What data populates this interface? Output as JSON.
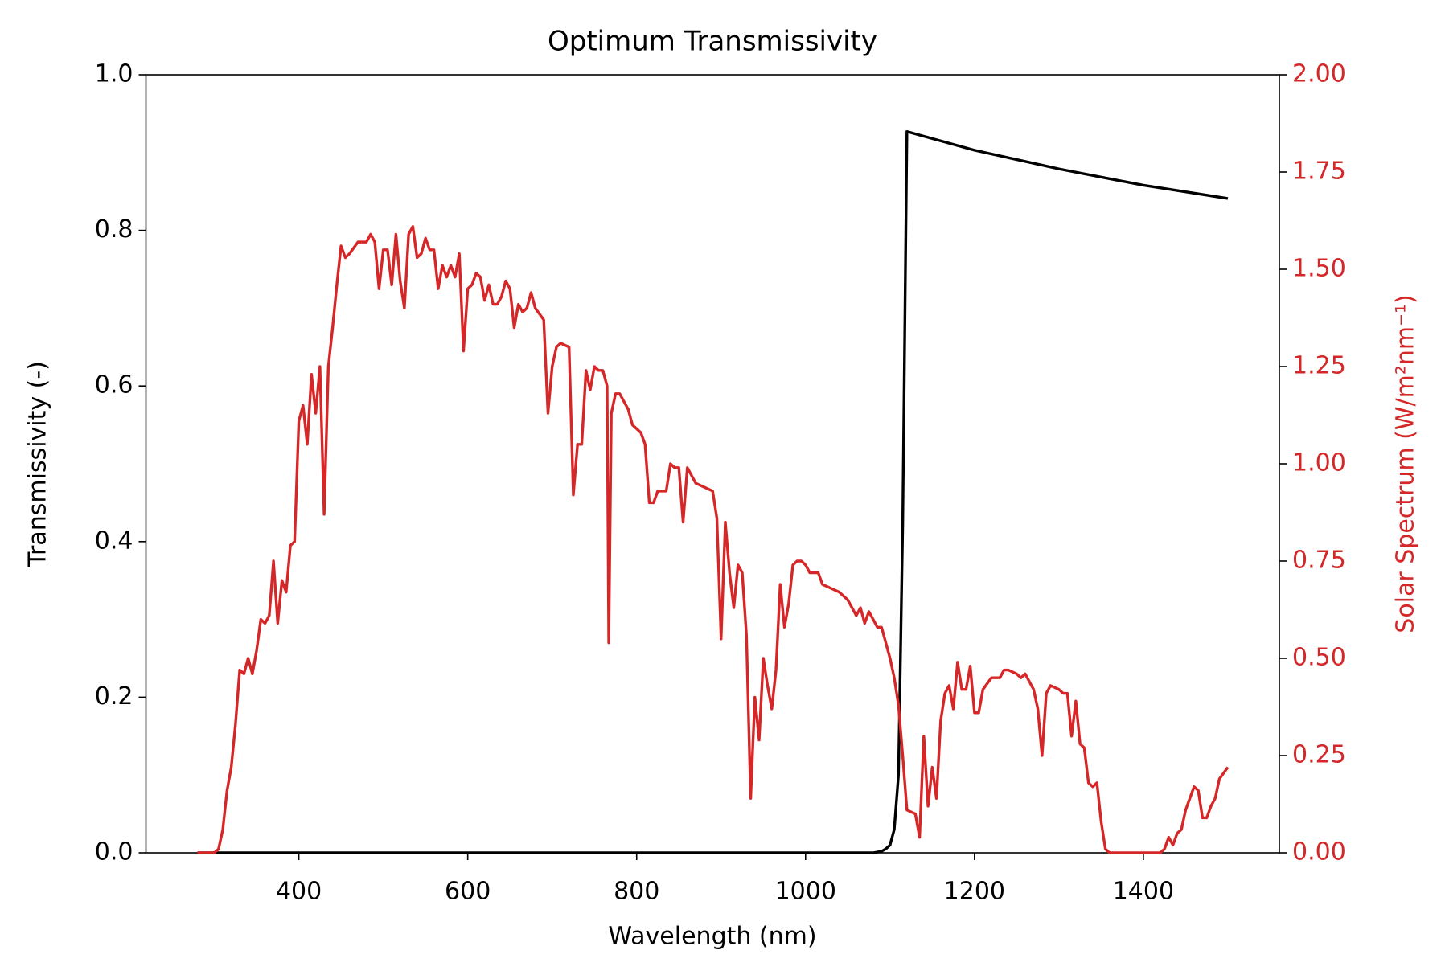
{
  "chart_data": {
    "type": "line",
    "title": "Optimum Transmissivity",
    "x_label": "Wavelength (nm)",
    "y_label": "Transmissivity (-)",
    "y2_label": "Solar Spectrum (W/m²nm⁻¹)",
    "xlim": [
      219,
      1561
    ],
    "xticks": [
      400,
      600,
      800,
      1000,
      1200,
      1400
    ],
    "ylim": [
      0,
      1
    ],
    "yticks": [
      {
        "value": 0,
        "label": "0.0"
      },
      0.2,
      0.4,
      0.6,
      0.8,
      {
        "value": 1,
        "label": "1.0"
      }
    ],
    "y2lim": [
      0,
      2
    ],
    "y2ticks": [
      {
        "value": 0,
        "label": "0.00"
      },
      {
        "value": 0.25,
        "label": "0.25"
      },
      {
        "value": 0.5,
        "label": "0.50"
      },
      {
        "value": 0.75,
        "label": "0.75"
      },
      {
        "value": 1,
        "label": "1.00"
      },
      {
        "value": 1.25,
        "label": "1.25"
      },
      {
        "value": 1.5,
        "label": "1.50"
      },
      {
        "value": 1.75,
        "label": "1.75"
      },
      {
        "value": 2,
        "label": "2.00"
      }
    ],
    "y2_color": "#d62728",
    "series": [
      {
        "color": "#000000",
        "x": [
          280,
          1080,
          1090,
          1095,
          1100,
          1105,
          1110,
          1115,
          1120,
          1200,
          1300,
          1400,
          1500
        ],
        "values": [
          0,
          0,
          0.002,
          0.005,
          0.01,
          0.03,
          0.1,
          0.42,
          0.927,
          0.903,
          0.879,
          0.858,
          0.841
        ]
      },
      {
        "color": "#d62728",
        "axis": "y2",
        "x": [
          280,
          300,
          305,
          310,
          315,
          320,
          325,
          330,
          335,
          340,
          345,
          350,
          355,
          360,
          365,
          370,
          375,
          380,
          385,
          390,
          395,
          400,
          405,
          410,
          415,
          420,
          425,
          430,
          435,
          440,
          445,
          450,
          455,
          460,
          470,
          480,
          485,
          490,
          495,
          500,
          505,
          510,
          515,
          520,
          525,
          530,
          535,
          540,
          545,
          550,
          555,
          560,
          565,
          570,
          575,
          580,
          585,
          590,
          595,
          600,
          605,
          610,
          615,
          620,
          625,
          630,
          635,
          640,
          645,
          650,
          655,
          660,
          665,
          670,
          675,
          680,
          690,
          695,
          700,
          705,
          710,
          720,
          725,
          730,
          735,
          740,
          745,
          750,
          755,
          760,
          765,
          767,
          770,
          775,
          780,
          790,
          795,
          805,
          810,
          815,
          820,
          825,
          835,
          840,
          845,
          850,
          855,
          860,
          865,
          870,
          880,
          890,
          895,
          900,
          905,
          910,
          915,
          920,
          925,
          930,
          935,
          940,
          945,
          950,
          955,
          960,
          965,
          970,
          975,
          980,
          985,
          990,
          995,
          1000,
          1005,
          1015,
          1020,
          1030,
          1040,
          1050,
          1055,
          1060,
          1065,
          1070,
          1075,
          1080,
          1085,
          1090,
          1095,
          1100,
          1105,
          1110,
          1115,
          1120,
          1130,
          1135,
          1140,
          1145,
          1150,
          1155,
          1160,
          1165,
          1170,
          1175,
          1180,
          1185,
          1190,
          1195,
          1200,
          1205,
          1210,
          1220,
          1230,
          1235,
          1240,
          1250,
          1255,
          1260,
          1270,
          1275,
          1280,
          1285,
          1290,
          1300,
          1305,
          1310,
          1315,
          1320,
          1325,
          1330,
          1335,
          1340,
          1345,
          1350,
          1355,
          1360,
          1400,
          1420,
          1425,
          1430,
          1435,
          1440,
          1445,
          1450,
          1455,
          1460,
          1465,
          1470,
          1475,
          1480,
          1485,
          1490,
          1500
        ],
        "values": [
          0,
          0,
          0.01,
          0.06,
          0.16,
          0.22,
          0.33,
          0.47,
          0.46,
          0.5,
          0.46,
          0.52,
          0.6,
          0.59,
          0.61,
          0.75,
          0.59,
          0.7,
          0.67,
          0.79,
          0.8,
          1.11,
          1.15,
          1.05,
          1.23,
          1.13,
          1.25,
          0.87,
          1.25,
          1.35,
          1.46,
          1.56,
          1.53,
          1.54,
          1.57,
          1.57,
          1.59,
          1.57,
          1.45,
          1.55,
          1.55,
          1.46,
          1.59,
          1.47,
          1.4,
          1.59,
          1.61,
          1.53,
          1.54,
          1.58,
          1.55,
          1.55,
          1.45,
          1.51,
          1.48,
          1.51,
          1.48,
          1.54,
          1.29,
          1.45,
          1.46,
          1.49,
          1.48,
          1.42,
          1.46,
          1.41,
          1.41,
          1.43,
          1.47,
          1.45,
          1.35,
          1.41,
          1.39,
          1.4,
          1.44,
          1.4,
          1.37,
          1.13,
          1.25,
          1.3,
          1.31,
          1.3,
          0.92,
          1.05,
          1.05,
          1.24,
          1.19,
          1.25,
          1.24,
          1.24,
          1.2,
          0.54,
          1.13,
          1.18,
          1.18,
          1.14,
          1.1,
          1.08,
          1.05,
          0.9,
          0.9,
          0.93,
          0.93,
          1.0,
          0.99,
          0.99,
          0.85,
          0.99,
          0.97,
          0.95,
          0.94,
          0.93,
          0.86,
          0.55,
          0.85,
          0.72,
          0.63,
          0.74,
          0.72,
          0.56,
          0.14,
          0.4,
          0.29,
          0.5,
          0.43,
          0.37,
          0.47,
          0.69,
          0.58,
          0.64,
          0.74,
          0.75,
          0.75,
          0.74,
          0.72,
          0.72,
          0.69,
          0.68,
          0.67,
          0.65,
          0.63,
          0.61,
          0.63,
          0.59,
          0.62,
          0.6,
          0.58,
          0.58,
          0.54,
          0.5,
          0.45,
          0.38,
          0.25,
          0.11,
          0.1,
          0.04,
          0.3,
          0.12,
          0.22,
          0.14,
          0.34,
          0.41,
          0.43,
          0.37,
          0.49,
          0.42,
          0.42,
          0.48,
          0.36,
          0.36,
          0.42,
          0.45,
          0.45,
          0.47,
          0.47,
          0.46,
          0.45,
          0.46,
          0.42,
          0.37,
          0.25,
          0.41,
          0.43,
          0.42,
          0.41,
          0.41,
          0.3,
          0.39,
          0.28,
          0.27,
          0.18,
          0.17,
          0.18,
          0.08,
          0.01,
          0,
          0,
          0,
          0.01,
          0.04,
          0.02,
          0.05,
          0.06,
          0.11,
          0.14,
          0.17,
          0.16,
          0.09,
          0.09,
          0.12,
          0.14,
          0.19,
          0.22
        ]
      }
    ]
  }
}
